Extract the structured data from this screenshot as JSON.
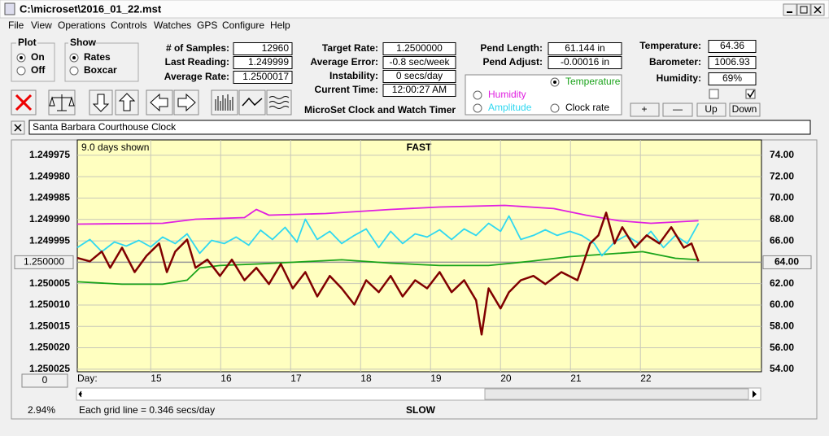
{
  "window": {
    "title": "C:\\microset\\2016_01_22.mst"
  },
  "menu": [
    "File",
    "View",
    "Operations",
    "Controls",
    "Watches",
    "GPS",
    "Configure",
    "Help"
  ],
  "plot_group": {
    "title": "Plot",
    "options": [
      "On",
      "Off"
    ]
  },
  "show_group": {
    "title": "Show",
    "options": [
      "Rates",
      "Boxcar"
    ]
  },
  "fields": [
    {
      "label": "# of Samples:",
      "value": "12960"
    },
    {
      "label": "Last Reading:",
      "value": "1.249999"
    },
    {
      "label": "Average Rate:",
      "value": "1.2500017"
    },
    {
      "label": "Target Rate:",
      "value": "1.2500000"
    },
    {
      "label": "Average Error:",
      "value": "-0.8 sec/week"
    },
    {
      "label": "Instability:",
      "value": "0 secs/day"
    },
    {
      "label": "Current Time:",
      "value": "12:00:27 AM"
    },
    {
      "label": "Pend Length:",
      "value": "61.144 in"
    },
    {
      "label": "Pend Adjust:",
      "value": "-0.00016 in"
    },
    {
      "label": "Temperature:",
      "value": "64.36"
    },
    {
      "label": "Barometer:",
      "value": "1006.93"
    },
    {
      "label": "Humidity:",
      "value": "69%"
    }
  ],
  "app_label": "MicroSet Clock and Watch Timer",
  "buttons": [
    "+",
    "—",
    "Up",
    "Down"
  ],
  "watch_name": "Santa Barbara Courthouse Clock",
  "chart_data": {
    "type": "line",
    "top_label": "FAST",
    "bottom_label": "SLOW",
    "span_label": "9.0 days shown",
    "x_label": "Day:",
    "footer": "Each grid line = 0.346 secs/day",
    "percent": "2.94%",
    "offset_button": "0",
    "y_ref": {
      "value": 1.25,
      "label": "1.250000"
    },
    "y2_ref": {
      "value": 64,
      "label": "64.00"
    },
    "xlim": [
      13.95,
      23.73
    ],
    "xticks": [
      15,
      16,
      17,
      18,
      19,
      20,
      21,
      22
    ],
    "ylim": [
      1.2499714,
      1.2500256
    ],
    "y_inverted": true,
    "yticks": [
      {
        "value": 1.249975,
        "label": "1.249975"
      },
      {
        "value": 1.24998,
        "label": "1.249980"
      },
      {
        "value": 1.249985,
        "label": "1.249985"
      },
      {
        "value": 1.24999,
        "label": "1.249990"
      },
      {
        "value": 1.249995,
        "label": "1.249995"
      },
      {
        "value": 1.25,
        "label": "1.250000"
      },
      {
        "value": 1.250005,
        "label": "1.250005"
      },
      {
        "value": 1.25001,
        "label": "1.250010"
      },
      {
        "value": 1.250015,
        "label": "1.250015"
      },
      {
        "value": 1.25002,
        "label": "1.250020"
      },
      {
        "value": 1.250025,
        "label": "1.250025"
      }
    ],
    "y2lim": [
      53.77,
      75.44
    ],
    "y2ticks": [
      {
        "value": 54,
        "label": "54.00"
      },
      {
        "value": 56,
        "label": "56.00"
      },
      {
        "value": 58,
        "label": "58.00"
      },
      {
        "value": 60,
        "label": "60.00"
      },
      {
        "value": 62,
        "label": "62.00"
      },
      {
        "value": 64,
        "label": "64.00"
      },
      {
        "value": 66,
        "label": "66.00"
      },
      {
        "value": 68,
        "label": "68.00"
      },
      {
        "value": 70,
        "label": "70.00"
      },
      {
        "value": 72,
        "label": "72.00"
      },
      {
        "value": 74,
        "label": "74.00"
      }
    ],
    "grid": true,
    "series": [
      {
        "name": "Temperature",
        "color": "#1aa31a",
        "axis": "y2",
        "x": [
          13.95,
          14.59,
          15.17,
          15.52,
          15.7,
          15.99,
          16.57,
          17.27,
          17.73,
          18.43,
          19.13,
          19.83,
          20.41,
          20.99,
          21.69,
          22.03,
          22.5,
          22.83
        ],
        "values": [
          62.18,
          61.95,
          61.95,
          62.33,
          63.47,
          63.7,
          63.85,
          64.08,
          64.23,
          63.92,
          63.7,
          63.7,
          64.08,
          64.53,
          64.84,
          64.99,
          64.38,
          64.23
        ]
      },
      {
        "name": "Humidity",
        "color": "#e020e0",
        "axis": "y2",
        "x": [
          13.95,
          15.17,
          15.64,
          16.34,
          16.51,
          16.69,
          17.5,
          18.43,
          19.13,
          20.06,
          20.76,
          21.22,
          21.69,
          22.15,
          22.83
        ],
        "values": [
          67.57,
          67.65,
          68.03,
          68.18,
          68.94,
          68.41,
          68.56,
          68.94,
          69.17,
          69.32,
          69.02,
          68.41,
          67.88,
          67.65,
          67.88
        ]
      },
      {
        "name": "Amplitude",
        "color": "#30d8f0",
        "axis": "y2",
        "x": [
          13.95,
          14.13,
          14.3,
          14.48,
          14.65,
          14.83,
          15.0,
          15.17,
          15.35,
          15.52,
          15.7,
          15.87,
          16.05,
          16.22,
          16.4,
          16.57,
          16.74,
          16.92,
          17.09,
          17.21,
          17.38,
          17.56,
          17.73,
          17.91,
          18.08,
          18.26,
          18.43,
          18.6,
          18.78,
          18.95,
          19.13,
          19.3,
          19.48,
          19.65,
          19.83,
          20.0,
          20.12,
          20.29,
          20.47,
          20.64,
          20.81,
          20.99,
          21.16,
          21.34,
          21.45,
          21.63,
          21.8,
          21.98,
          22.15,
          22.33,
          22.5,
          22.67,
          22.83
        ],
        "values": [
          65.37,
          66.13,
          64.99,
          65.9,
          65.52,
          66.05,
          65.44,
          66.36,
          65.75,
          66.66,
          64.84,
          66.05,
          65.75,
          66.36,
          65.6,
          67.0,
          66.13,
          67.27,
          65.9,
          68.03,
          66.13,
          66.89,
          65.75,
          66.51,
          67.12,
          65.37,
          66.89,
          65.75,
          66.66,
          66.36,
          67.04,
          66.13,
          67.12,
          66.51,
          67.65,
          66.89,
          68.33,
          66.13,
          66.51,
          67.04,
          66.51,
          66.89,
          66.51,
          65.75,
          64.61,
          65.9,
          66.51,
          65.75,
          66.89,
          65.37,
          66.51,
          65.75,
          67.65
        ]
      },
      {
        "name": "Clock rate",
        "color": "#800000",
        "axis": "y",
        "x": [
          13.95,
          14.13,
          14.3,
          14.42,
          14.59,
          14.77,
          14.94,
          15.12,
          15.23,
          15.35,
          15.52,
          15.64,
          15.81,
          15.99,
          16.16,
          16.34,
          16.51,
          16.69,
          16.86,
          17.03,
          17.21,
          17.38,
          17.56,
          17.73,
          17.91,
          18.08,
          18.26,
          18.43,
          18.6,
          18.78,
          18.95,
          19.13,
          19.3,
          19.48,
          19.65,
          19.73,
          19.83,
          20.0,
          20.12,
          20.29,
          20.47,
          20.64,
          20.87,
          21.1,
          21.28,
          21.4,
          21.51,
          21.63,
          21.74,
          21.92,
          22.09,
          22.27,
          22.44,
          22.62,
          22.73,
          22.83
        ],
        "values": [
          1.249999,
          1.2499998,
          1.2499975,
          1.2500013,
          1.2499966,
          1.2500023,
          1.2499985,
          1.2499956,
          1.2500023,
          1.2499975,
          1.2499947,
          1.2500013,
          1.2499994,
          1.2500032,
          1.2499994,
          1.2500042,
          1.2500013,
          1.2500051,
          1.2500004,
          1.2500061,
          1.2500023,
          1.250008,
          1.2500032,
          1.2500061,
          1.2500099,
          1.2500042,
          1.250007,
          1.2500032,
          1.250008,
          1.2500042,
          1.2500061,
          1.2500023,
          1.250007,
          1.2500042,
          1.2500089,
          1.2500169,
          1.2500061,
          1.2500108,
          1.250007,
          1.2500042,
          1.2500032,
          1.2500051,
          1.2500023,
          1.2500042,
          1.2499956,
          1.2499937,
          1.2499884,
          1.2499956,
          1.2499918,
          1.2499966,
          1.2499937,
          1.2499956,
          1.2499918,
          1.2499966,
          1.2499956,
          1.2499998
        ]
      }
    ]
  }
}
